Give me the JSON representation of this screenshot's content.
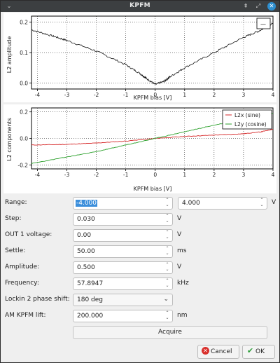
{
  "window": {
    "title": "KPFM",
    "menu_glyph": "⌄",
    "pin_glyph": "⇞",
    "restore_glyph": "⤢",
    "close_glyph": "✕"
  },
  "plot1": {
    "ylabel": "L2 amplitude",
    "xlabel": "KPFM bias [V]",
    "xticks": [
      "-4",
      "-3",
      "-2",
      "-1",
      "0",
      "1",
      "2",
      "3",
      "4"
    ],
    "yticks": [
      "0.0",
      "0.1",
      "0.2"
    ],
    "legend_entry": "—"
  },
  "plot2": {
    "ylabel": "L2 components",
    "xlabel": "KPFM bias [V]",
    "xticks": [
      "-4",
      "-3",
      "-2",
      "-1",
      "0",
      "1",
      "2",
      "3",
      "4"
    ],
    "yticks": [
      "-0.2",
      "0.0",
      "0.2"
    ],
    "legend": [
      {
        "name": "L2x (sine)",
        "color": "#d62728"
      },
      {
        "name": "L2y (cosine)",
        "color": "#2ca02c"
      }
    ]
  },
  "chart_data": [
    {
      "type": "line",
      "title": "",
      "xlabel": "KPFM bias [V]",
      "ylabel": "L2 amplitude",
      "xlim": [
        -4.2,
        4.0
      ],
      "ylim": [
        -0.02,
        0.22
      ],
      "grid": true,
      "legend_position": "top-right",
      "series": [
        {
          "name": "",
          "color": "#111111",
          "x": [
            -4.2,
            -3.5,
            -3.0,
            -2.0,
            -1.0,
            -0.5,
            -0.3,
            0.0,
            0.3,
            0.5,
            1.0,
            2.0,
            3.0,
            3.5,
            4.0
          ],
          "y": [
            0.175,
            0.155,
            0.14,
            0.105,
            0.06,
            0.03,
            0.015,
            -0.005,
            0.005,
            0.02,
            0.05,
            0.1,
            0.15,
            0.17,
            0.195
          ]
        }
      ]
    },
    {
      "type": "line",
      "title": "",
      "xlabel": "KPFM bias [V]",
      "ylabel": "L2 components",
      "xlim": [
        -4.2,
        4.0
      ],
      "ylim": [
        -0.23,
        0.23
      ],
      "grid": true,
      "legend_position": "top-right",
      "series": [
        {
          "name": "L2x (sine)",
          "color": "#d62728",
          "x": [
            -4.2,
            -3.0,
            -2.0,
            -1.0,
            0.0,
            1.0,
            2.0,
            3.0,
            3.6,
            4.0
          ],
          "y": [
            -0.05,
            -0.045,
            -0.035,
            -0.02,
            0.0,
            0.015,
            0.025,
            0.035,
            0.05,
            0.07
          ]
        },
        {
          "name": "L2y (cosine)",
          "color": "#2ca02c",
          "x": [
            -4.2,
            -3.0,
            -2.0,
            -1.0,
            0.0,
            1.0,
            2.0,
            3.0,
            4.0
          ],
          "y": [
            -0.19,
            -0.14,
            -0.1,
            -0.05,
            0.0,
            0.05,
            0.1,
            0.145,
            0.19
          ]
        }
      ]
    }
  ],
  "form": {
    "range": {
      "label": "Range:",
      "min": "-4.000",
      "max": "4.000",
      "unit": "V"
    },
    "step": {
      "label": "Step:",
      "value": "0.030",
      "unit": "V"
    },
    "out1": {
      "label": "OUT 1 voltage:",
      "value": "0.00",
      "unit": "V"
    },
    "settle": {
      "label": "Settle:",
      "value": "50.00",
      "unit": "ms"
    },
    "amplitude": {
      "label": "Amplitude:",
      "value": "0.500",
      "unit": "V"
    },
    "frequency": {
      "label": "Frequency:",
      "value": "57.8947",
      "unit": "kHz"
    },
    "phase": {
      "label": "Lockin 2 phase shift:",
      "value": "180 deg"
    },
    "lift": {
      "label": "AM KPFM lift:",
      "value": "200.000",
      "unit": "nm"
    },
    "acquire_label": "Acquire"
  },
  "buttons": {
    "cancel": "Cancel",
    "ok": "OK"
  },
  "colors": {
    "titlebar": "#3c3f41",
    "selection": "#3b8edb",
    "cancel_icon": "#d9302c",
    "ok_icon": "#2e9e3a"
  }
}
